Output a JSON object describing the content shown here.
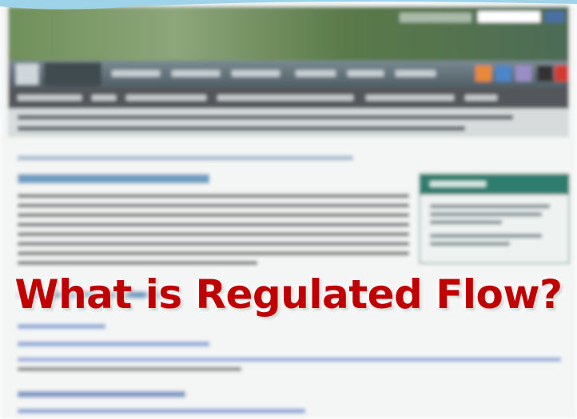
{
  "overlay": {
    "title": "What is Regulated Flow?"
  }
}
